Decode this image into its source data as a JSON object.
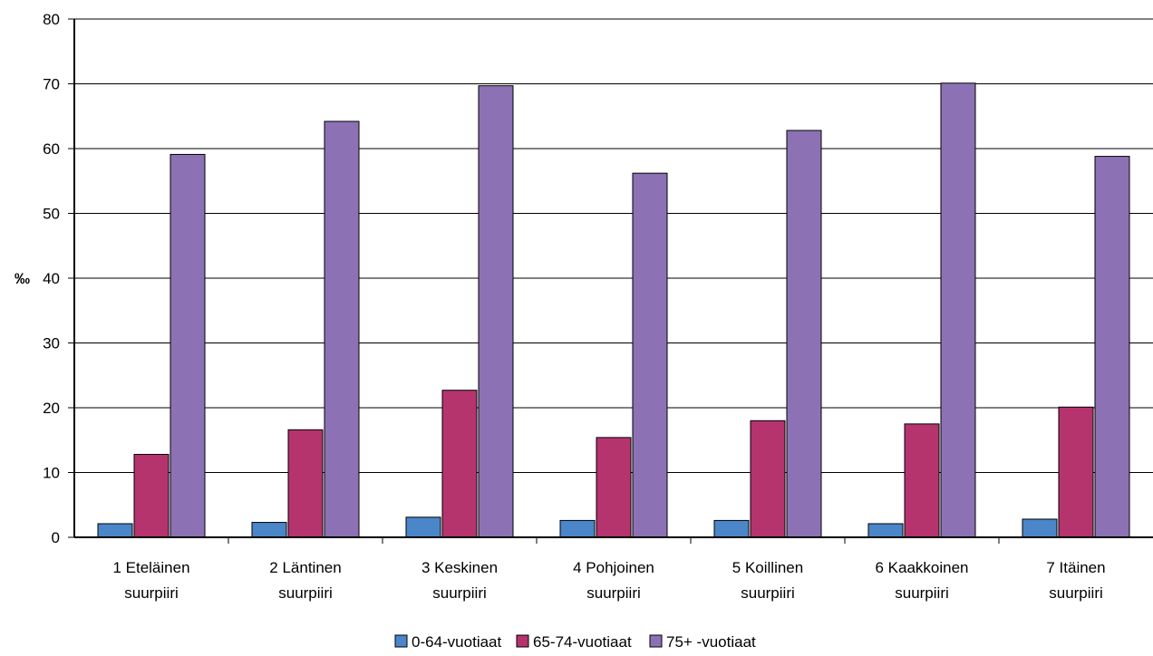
{
  "chart_data": {
    "type": "bar",
    "categories": [
      [
        "1 Eteläinen",
        "suurpiiri"
      ],
      [
        "2 Läntinen",
        "suurpiiri"
      ],
      [
        "3 Keskinen",
        "suurpiiri"
      ],
      [
        "4 Pohjoinen",
        "suurpiiri"
      ],
      [
        "5 Koillinen",
        "suurpiiri"
      ],
      [
        "6 Kaakkoinen",
        "suurpiiri"
      ],
      [
        "7 Itäinen",
        "suurpiiri"
      ]
    ],
    "series": [
      {
        "name": "0-64-vuotiaat",
        "color": "#4a86c8",
        "values": [
          2.1,
          2.3,
          3.1,
          2.6,
          2.6,
          2.1,
          2.8
        ]
      },
      {
        "name": "65-74-vuotiaat",
        "color": "#b5346e",
        "values": [
          12.8,
          16.6,
          22.7,
          15.4,
          18.0,
          17.5,
          20.1
        ]
      },
      {
        "name": "75+ -vuotiaat",
        "color": "#8c72b4",
        "values": [
          59.1,
          64.2,
          69.7,
          56.2,
          62.8,
          70.1,
          58.8
        ]
      }
    ],
    "ylabel": "‰",
    "ylim": [
      0,
      80
    ],
    "yticks": [
      0,
      10,
      20,
      30,
      40,
      50,
      60,
      70,
      80
    ],
    "grid": true,
    "legend_position": "bottom"
  }
}
